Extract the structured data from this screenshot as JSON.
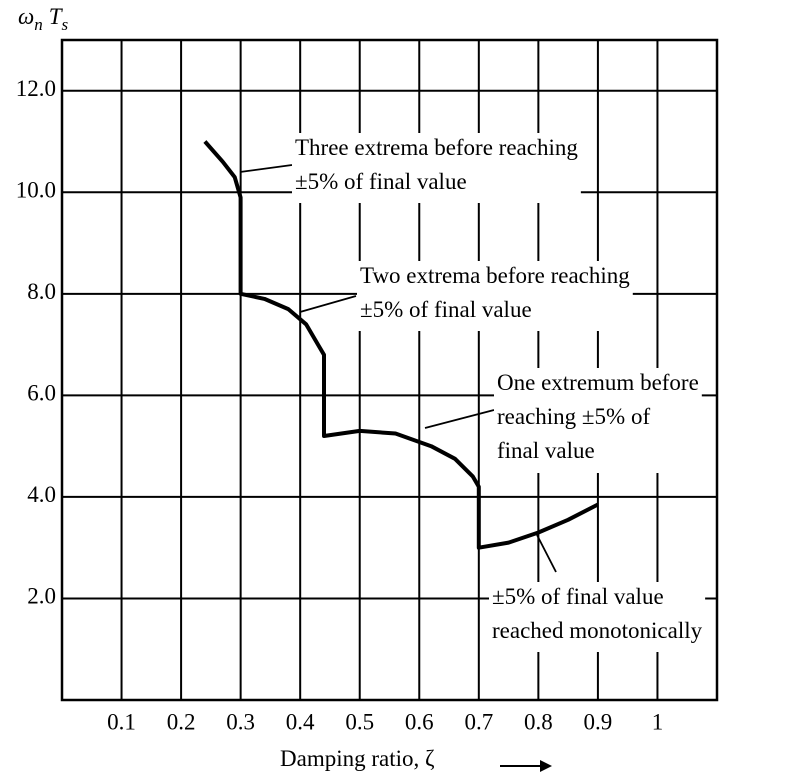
{
  "chart_data": {
    "type": "line",
    "ylabel": [
      "ω",
      "n",
      "T",
      "s"
    ],
    "xlabel": "Damping ratio, ζ",
    "x": [
      0.24,
      0.27,
      0.29,
      0.3,
      0.3,
      0.34,
      0.38,
      0.41,
      0.43,
      0.44,
      0.44,
      0.5,
      0.56,
      0.62,
      0.66,
      0.69,
      0.7,
      0.7,
      0.75,
      0.8,
      0.85,
      0.9
    ],
    "values": [
      11.0,
      10.6,
      10.3,
      9.9,
      8.0,
      7.9,
      7.7,
      7.4,
      7.0,
      6.8,
      5.2,
      5.3,
      5.25,
      5.0,
      4.75,
      4.4,
      4.2,
      3.0,
      3.1,
      3.3,
      3.55,
      3.85
    ],
    "color": "#000000",
    "xlim": [
      0,
      1.1
    ],
    "ylim": [
      0,
      13
    ],
    "xticks": [
      0.1,
      0.2,
      0.3,
      0.4,
      0.5,
      0.6,
      0.7,
      0.8,
      0.9,
      1.0
    ],
    "yticks": [
      {
        "value": 2,
        "label": "2.0"
      },
      {
        "value": 4,
        "label": "4.0"
      },
      {
        "value": 6,
        "label": "6.0"
      },
      {
        "value": 8,
        "label": "8.0"
      },
      {
        "value": 10,
        "label": "10.0"
      },
      {
        "value": 12,
        "label": "12.0"
      }
    ],
    "grid": true,
    "annotations": [
      [
        "Three extrema before reaching",
        "±5% of final value"
      ],
      [
        "Two extrema before reaching",
        "±5% of final value"
      ],
      [
        "One extremum before",
        "reaching ±5% of",
        "final value"
      ],
      [
        "±5% of final value",
        "reached monotonically"
      ]
    ]
  }
}
